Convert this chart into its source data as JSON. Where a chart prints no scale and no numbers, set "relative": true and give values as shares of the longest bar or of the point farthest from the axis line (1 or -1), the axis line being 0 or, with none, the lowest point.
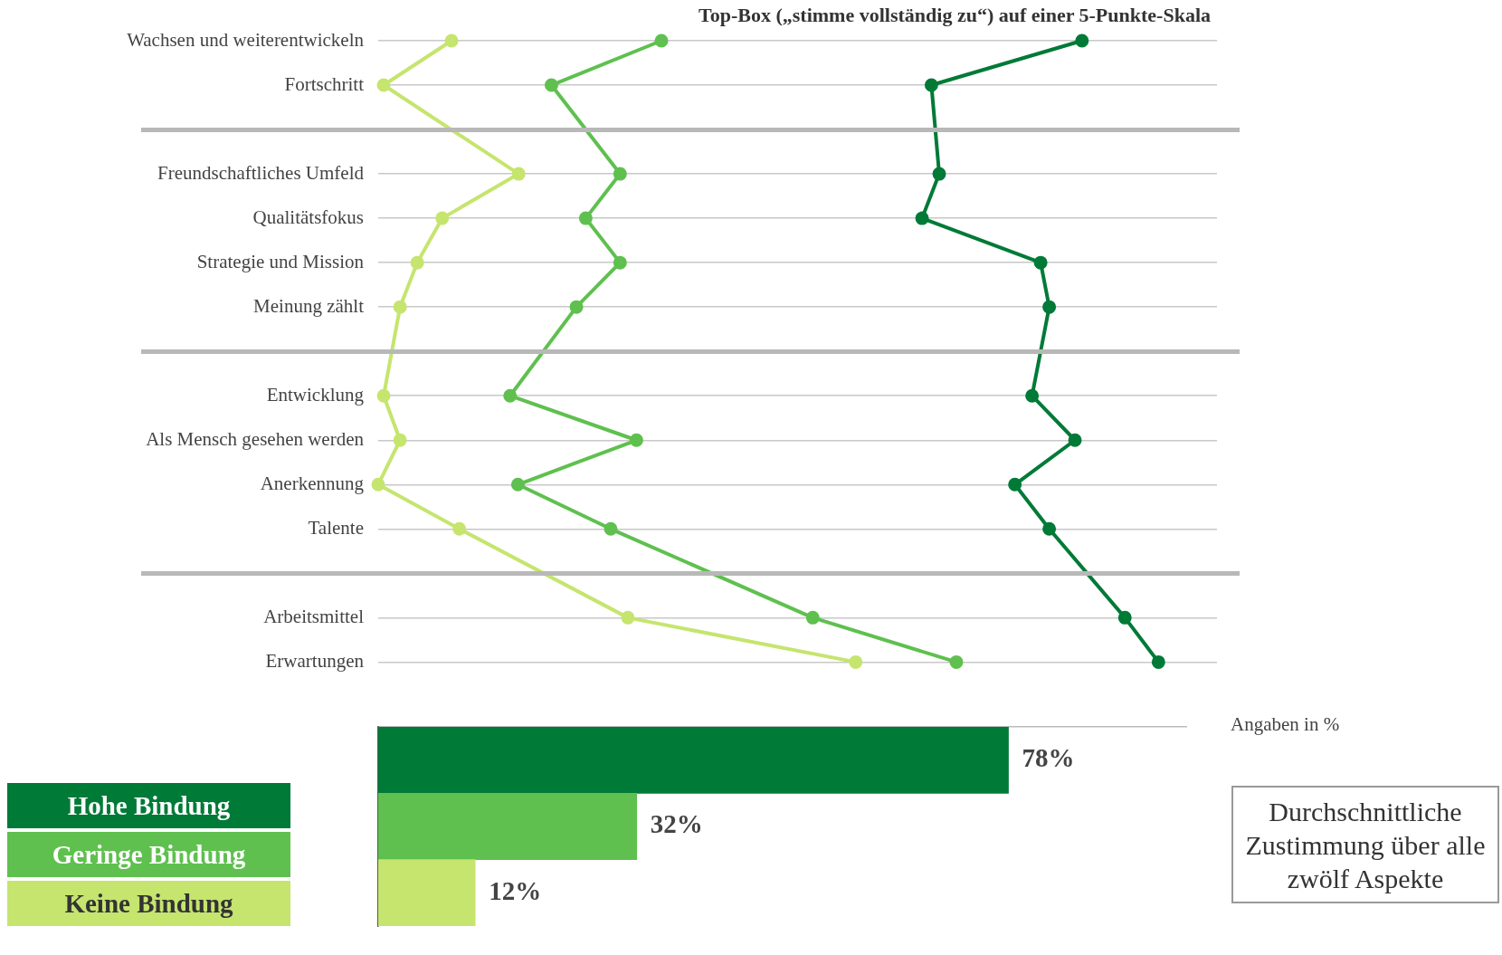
{
  "chart_data": [
    {
      "type": "line",
      "orientation": "horizontal",
      "title": "Top-Box („stimme vollständig zu“) auf einer 5-Punkte-Skala",
      "relative": true,
      "grid": "y",
      "tick_labels": "y",
      "marker": "circle",
      "legend": "bottom left",
      "categories": [
        "Wachsen und weiterentwickeln",
        "Fortschritt",
        null,
        "Freundschaftliches Umfeld",
        "Qualitätsfokus",
        "Strategie und Mission",
        "Meinung zählt",
        null,
        "Entwicklung",
        "Als Mensch gesehen werden",
        "Anerkennung",
        "Talente",
        null,
        "Arbeitsmittel",
        "Erwartungen"
      ],
      "series": [
        {
          "name": "Hohe Bindung",
          "color": "#007a37",
          "values": [
            0.902,
            0.709,
            null,
            0.719,
            0.697,
            0.849,
            0.86,
            null,
            0.838,
            0.893,
            0.816,
            0.86,
            null,
            0.957,
            1
          ]
        },
        {
          "name": "Geringe Bindung",
          "color": "#5fc04f",
          "values": [
            0.363,
            0.222,
            null,
            0.31,
            0.266,
            0.31,
            0.254,
            null,
            0.169,
            0.331,
            0.179,
            0.298,
            null,
            0.557,
            0.741
          ]
        },
        {
          "name": "Keine Bindung",
          "color": "#c5e56e",
          "values": [
            0.094,
            0.007,
            null,
            0.18,
            0.082,
            0.05,
            0.028,
            null,
            0.007,
            0.028,
            0,
            0.104,
            null,
            0.32,
            0.612
          ]
        }
      ]
    },
    {
      "type": "bar",
      "orientation": "horizontal",
      "categories": [
        null,
        null,
        null
      ],
      "values": [
        78,
        32,
        12
      ],
      "colors": [
        "#007a37",
        "#5fc04f",
        "#c5e56e"
      ],
      "value_labels": [
        "78%",
        "32%",
        "12%"
      ],
      "xlim": [
        0,
        100
      ],
      "tick_labels": false,
      "annotations": [
        "Angaben in %",
        "Durchschnittliche Zustimmung über alle zwölf Aspekte"
      ]
    }
  ]
}
